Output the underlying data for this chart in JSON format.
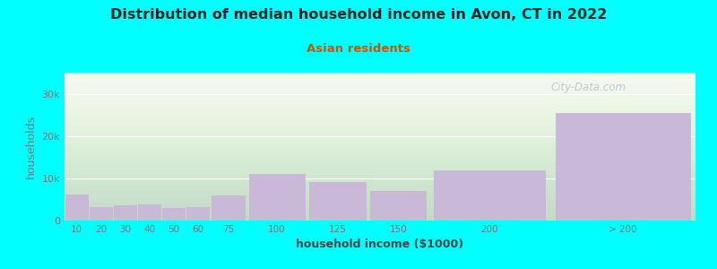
{
  "title": "Distribution of median household income in Avon, CT in 2022",
  "subtitle": "Asian residents",
  "xlabel": "household income ($1000)",
  "ylabel": "households",
  "categories": [
    "10",
    "20",
    "30",
    "40",
    "50",
    "60",
    "75",
    "100",
    "125",
    "150",
    "200",
    "> 200"
  ],
  "bar_lefts": [
    0,
    10,
    20,
    30,
    40,
    50,
    60,
    75,
    100,
    125,
    150,
    200
  ],
  "bar_widths": [
    10,
    10,
    10,
    10,
    10,
    10,
    15,
    25,
    25,
    25,
    50,
    60
  ],
  "values": [
    6200,
    3200,
    3700,
    3800,
    2900,
    3100,
    6000,
    11000,
    9200,
    7000,
    11800,
    25500
  ],
  "bar_color": "#c9b8d8",
  "bar_edge_color": "#c0aed5",
  "background_color": "#00ffff",
  "title_color": "#222222",
  "subtitle_color": "#cc5500",
  "tick_color": "#777777",
  "ylabel_color": "#777777",
  "xlabel_color": "#444444",
  "watermark": "City-Data.com",
  "ylim": [
    0,
    35000
  ],
  "yticks": [
    0,
    10000,
    20000,
    30000
  ],
  "ytick_labels": [
    "0",
    "10k",
    "20k",
    "30k"
  ],
  "grid_color": "#ffffff",
  "plot_bg_color": "#f4f8ee"
}
